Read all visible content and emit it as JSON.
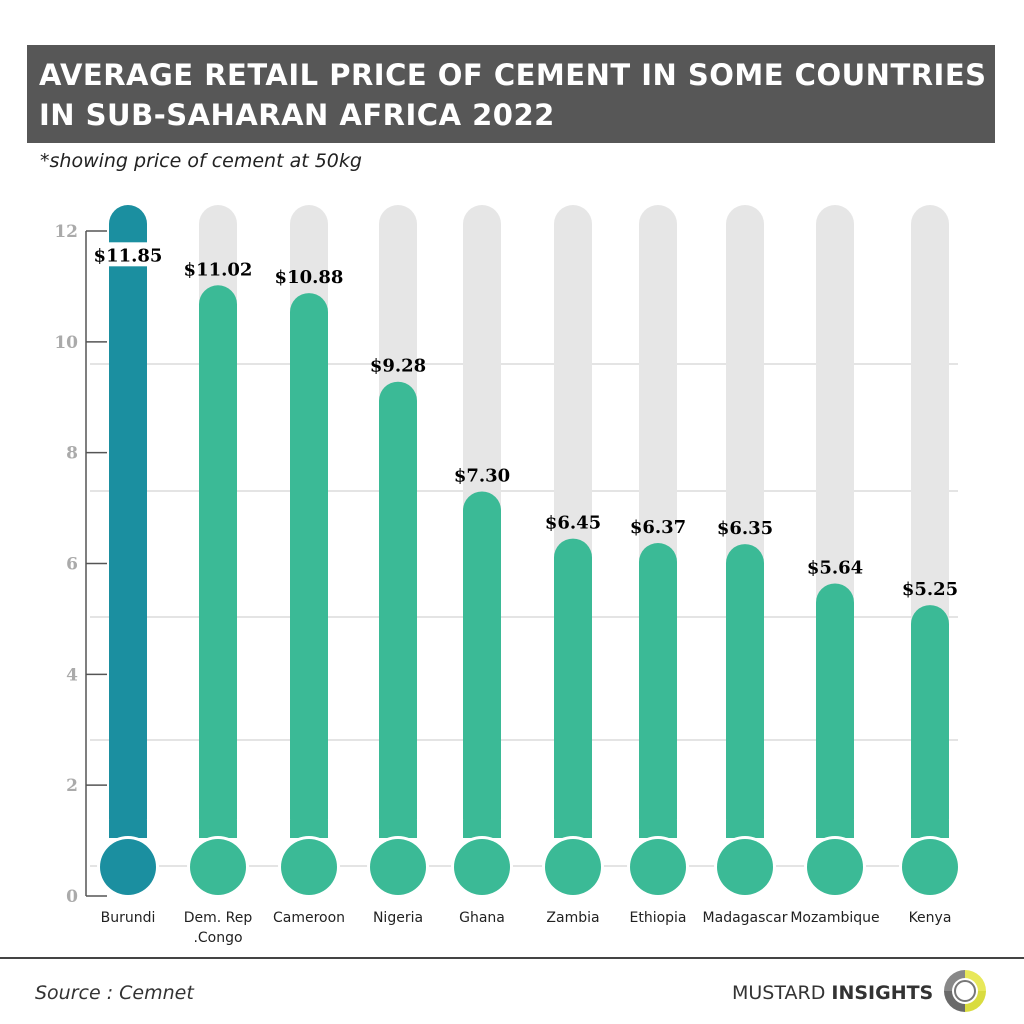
{
  "title": "AVERAGE RETAIL PRICE OF CEMENT IN SOME COUNTRIES IN SUB-SAHARAN AFRICA 2022",
  "subtitle": "*showing price of cement at 50kg",
  "footer": {
    "source": "Source : Cemnet",
    "brand_light": "MUSTARD",
    "brand_bold": "INSIGHTS"
  },
  "colors": {
    "highlight": "#1b8fa0",
    "bar": "#3bba96",
    "track": "#e6e6e6"
  },
  "chart_data": {
    "type": "bar",
    "categories": [
      "Burundi",
      "Dem. Rep .Congo",
      "Cameroon",
      "Nigeria",
      "Ghana",
      "Zambia",
      "Ethiopia",
      "Madagascar",
      "Mozambique",
      "Kenya"
    ],
    "category_lines": [
      [
        "Burundi"
      ],
      [
        "Dem. Rep",
        ".Congo"
      ],
      [
        "Cameroon"
      ],
      [
        "Nigeria"
      ],
      [
        "Ghana"
      ],
      [
        "Zambia"
      ],
      [
        "Ethiopia"
      ],
      [
        "Madagascar"
      ],
      [
        "Mozambique"
      ],
      [
        "Kenya"
      ]
    ],
    "values": [
      11.85,
      11.02,
      10.88,
      9.28,
      7.3,
      6.45,
      6.37,
      6.35,
      5.64,
      5.25
    ],
    "data_labels": [
      "$11.85",
      "$11.02",
      "$10.88",
      "$9.28",
      "$7.30",
      "$6.45",
      "$6.37",
      "$6.35",
      "$5.64",
      "$5.25"
    ],
    "ylim": [
      0,
      12
    ],
    "yticks": [
      0,
      2,
      4,
      6,
      8,
      10,
      12
    ],
    "highlighted": "Burundi",
    "grid": true
  }
}
